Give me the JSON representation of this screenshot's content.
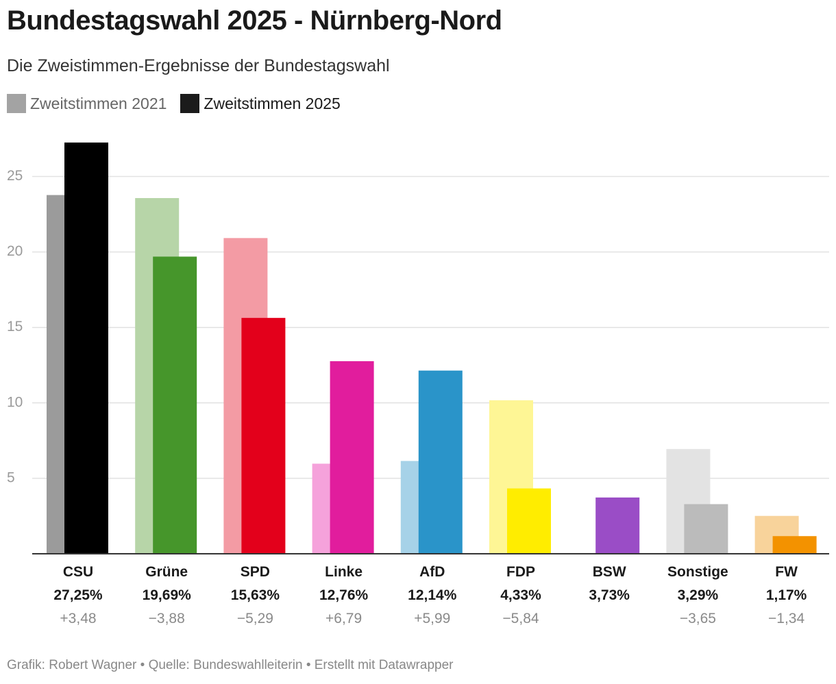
{
  "title": "Bundestagswahl 2025 - Nürnberg-Nord",
  "subtitle": "Die Zweistimmen-Ergebnisse der Bundestagswahl",
  "legend": {
    "old_label": "Zweitstimmen 2021",
    "new_label": "Zweitstimmen 2025",
    "old_color": "#a3a3a3",
    "new_color": "#1b1b1b"
  },
  "footer": "Grafik: Robert Wagner • Quelle: Bundeswahlleiterin • Erstellt mit Datawrapper",
  "chart_data": {
    "type": "bar",
    "title": "Bundestagswahl 2025 - Nürnberg-Nord",
    "xlabel": "",
    "ylabel": "",
    "ylim": [
      0,
      27.25
    ],
    "yticks": [
      5,
      10,
      15,
      20,
      25
    ],
    "grid": true,
    "legend_position": "top-left",
    "categories": [
      "CSU",
      "Grüne",
      "SPD",
      "Linke",
      "AfD",
      "FDP",
      "BSW",
      "Sonstige",
      "FW"
    ],
    "series": [
      {
        "name": "Zweitstimmen 2021",
        "values": [
          23.77,
          23.57,
          20.92,
          5.97,
          6.15,
          10.17,
          null,
          6.94,
          2.51
        ],
        "colors": [
          "#9b9b9b",
          "#b7d5a8",
          "#f39ba4",
          "#f5a2db",
          "#a6d2e8",
          "#fef695",
          null,
          "#e3e3e3",
          "#f8d39b"
        ]
      },
      {
        "name": "Zweitstimmen 2025",
        "values": [
          27.25,
          19.69,
          15.63,
          12.76,
          12.14,
          4.33,
          3.73,
          3.29,
          1.17
        ],
        "colors": [
          "#000000",
          "#46962b",
          "#e3001b",
          "#e11d9d",
          "#2a94c9",
          "#ffed00",
          "#9a4dc6",
          "#bbbbbb",
          "#f39200"
        ]
      }
    ],
    "value_labels": [
      "27,25%",
      "19,69%",
      "15,63%",
      "12,76%",
      "12,14%",
      "4,33%",
      "3,73%",
      "3,29%",
      "1,17%"
    ],
    "change_labels": [
      "+3,48",
      "−3,88",
      "−5,29",
      "+6,79",
      "+5,99",
      "−5,84",
      "",
      "−3,65",
      "−1,34"
    ]
  }
}
